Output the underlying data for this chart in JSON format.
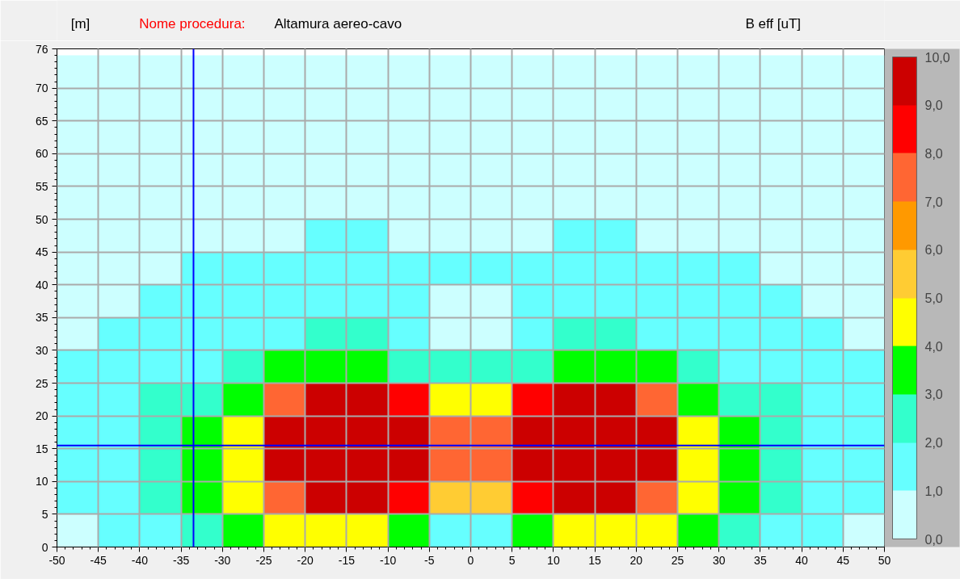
{
  "chart_data": {
    "type": "heatmap",
    "title": "Nome procedura:",
    "subtitle": "Altamura aereo-cavo",
    "ylabel": "[m]",
    "clabel": "B eff [uT]",
    "x": [
      -47.5,
      -42.5,
      -37.5,
      -32.5,
      -27.5,
      -22.5,
      -17.5,
      -12.5,
      -7.5,
      -2.5,
      2.5,
      7.5,
      12.5,
      17.5,
      22.5,
      27.5,
      32.5,
      37.5,
      42.5,
      47.5
    ],
    "y": [
      72.5,
      67.5,
      62.5,
      57.5,
      52.5,
      47.5,
      42.5,
      37.5,
      32.5,
      27.5,
      22.5,
      17.5,
      12.5,
      7.5,
      2.5
    ],
    "cells": [
      [
        0.5,
        0.5,
        0.5,
        0.5,
        0.5,
        0.5,
        0.5,
        0.5,
        0.5,
        0.5,
        0.5,
        0.5,
        0.5,
        0.5,
        0.5,
        0.5,
        0.5,
        0.5,
        0.5,
        0.5
      ],
      [
        0.5,
        0.5,
        0.5,
        0.5,
        0.5,
        0.5,
        0.5,
        0.5,
        0.5,
        0.5,
        0.5,
        0.5,
        0.5,
        0.5,
        0.5,
        0.5,
        0.5,
        0.5,
        0.5,
        0.5
      ],
      [
        0.5,
        0.5,
        0.5,
        0.5,
        0.5,
        0.5,
        0.5,
        0.5,
        0.5,
        0.5,
        0.5,
        0.5,
        0.5,
        0.5,
        0.5,
        0.5,
        0.5,
        0.5,
        0.5,
        0.5
      ],
      [
        0.5,
        0.5,
        0.5,
        0.5,
        0.5,
        0.5,
        0.5,
        0.5,
        0.5,
        0.5,
        0.5,
        0.5,
        0.5,
        0.5,
        0.5,
        0.5,
        0.5,
        0.5,
        0.5,
        0.5
      ],
      [
        0.5,
        0.5,
        0.5,
        0.5,
        0.5,
        0.5,
        0.5,
        0.5,
        0.5,
        0.5,
        0.5,
        0.5,
        0.5,
        0.5,
        0.5,
        0.5,
        0.5,
        0.5,
        0.5,
        0.5
      ],
      [
        0.5,
        0.5,
        0.5,
        0.5,
        0.5,
        0.5,
        1.5,
        1.5,
        0.5,
        0.5,
        0.5,
        0.5,
        1.5,
        1.5,
        0.5,
        0.5,
        0.5,
        0.5,
        0.5,
        0.5
      ],
      [
        0.5,
        0.5,
        0.5,
        1.5,
        1.5,
        1.5,
        1.5,
        1.5,
        1.5,
        1.5,
        1.5,
        1.5,
        1.5,
        1.5,
        1.5,
        1.5,
        1.5,
        0.5,
        0.5,
        0.5
      ],
      [
        0.5,
        0.5,
        1.5,
        1.5,
        1.5,
        1.5,
        1.5,
        1.5,
        1.5,
        0.5,
        0.5,
        1.5,
        1.5,
        1.5,
        1.5,
        1.5,
        1.5,
        1.5,
        0.5,
        0.5
      ],
      [
        0.5,
        1.5,
        1.5,
        1.5,
        1.5,
        1.5,
        2.5,
        2.5,
        1.5,
        0.5,
        0.5,
        1.5,
        2.5,
        2.5,
        1.5,
        1.5,
        1.5,
        1.5,
        1.5,
        0.5
      ],
      [
        1.5,
        1.5,
        1.5,
        1.5,
        2.5,
        3.5,
        3.5,
        3.5,
        2.5,
        2.5,
        2.5,
        2.5,
        3.5,
        3.5,
        3.5,
        2.5,
        1.5,
        1.5,
        1.5,
        1.5
      ],
      [
        1.5,
        1.5,
        2.5,
        2.5,
        3.5,
        7.5,
        10,
        10,
        8.5,
        4.5,
        4.5,
        8.5,
        10,
        10,
        7.5,
        3.5,
        2.5,
        2.5,
        1.5,
        1.5
      ],
      [
        1.5,
        1.5,
        2.5,
        3.5,
        4.5,
        10,
        10,
        10,
        10,
        7.5,
        7.5,
        10,
        10,
        10,
        10,
        4.5,
        3.5,
        2.5,
        1.5,
        1.5
      ],
      [
        1.5,
        1.5,
        2.5,
        3.5,
        4.5,
        10,
        10,
        10,
        10,
        7.5,
        7.5,
        10,
        10,
        10,
        10,
        4.5,
        3.5,
        2.5,
        1.5,
        1.5
      ],
      [
        1.5,
        1.5,
        2.5,
        3.5,
        4.5,
        7.5,
        10,
        10,
        8.5,
        5.5,
        5.5,
        8.5,
        10,
        10,
        7.5,
        4.5,
        3.5,
        2.5,
        1.5,
        1.5
      ],
      [
        0.5,
        1.5,
        1.5,
        2.5,
        3.5,
        4.5,
        4.5,
        4.5,
        3.5,
        1.5,
        1.5,
        3.5,
        4.5,
        4.5,
        4.5,
        3.5,
        2.5,
        1.5,
        1.5,
        0.5
      ]
    ],
    "colors": [
      "#ccffff",
      "#66ffff",
      "#33ffcc",
      "#00ff00",
      "#ffff00",
      "#ffcc33",
      "#ff9900",
      "#ff6633",
      "#ff0000",
      "#cc0000",
      "#000000"
    ],
    "clim": [
      0,
      10
    ],
    "cticks": [
      {
        "value": 0,
        "label": "0,0"
      },
      {
        "value": 1,
        "label": "1,0"
      },
      {
        "value": 2,
        "label": "2,0"
      },
      {
        "value": 3,
        "label": "3,0"
      },
      {
        "value": 4,
        "label": "4,0"
      },
      {
        "value": 5,
        "label": "5,0"
      },
      {
        "value": 6,
        "label": "6,0"
      },
      {
        "value": 7,
        "label": "7,0"
      },
      {
        "value": 8,
        "label": "8,0"
      },
      {
        "value": 9,
        "label": "9,0"
      },
      {
        "value": 10,
        "label": "10,0"
      }
    ],
    "xlim": [
      -50,
      50
    ],
    "xticks": [
      -50,
      -45,
      -40,
      -35,
      -30,
      -25,
      -20,
      -15,
      -10,
      -5,
      0,
      5,
      10,
      15,
      20,
      25,
      30,
      35,
      40,
      45,
      50
    ],
    "ylim": [
      0,
      76
    ],
    "yticks": [
      0,
      5,
      10,
      15,
      20,
      25,
      30,
      35,
      40,
      45,
      50,
      55,
      60,
      65,
      70,
      76
    ],
    "grid": true,
    "ref_lines": [
      {
        "axis": "x",
        "value": -33.5,
        "color": "#0000ff"
      },
      {
        "axis": "y",
        "value": 15.5,
        "color": "#0000ff"
      }
    ]
  }
}
